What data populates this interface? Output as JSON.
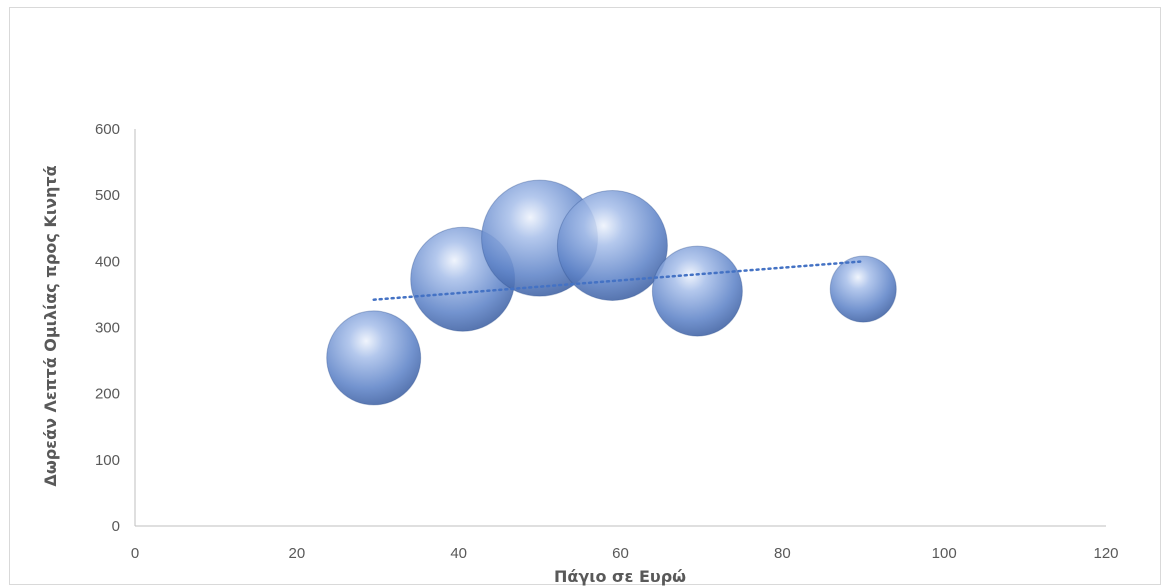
{
  "chart_data": {
    "type": "bubble",
    "title": "",
    "xlabel": "Πάγιο σε Ευρώ",
    "ylabel": "Δωρεάν Λεπτά Ομιλίας προς Κινητά",
    "xlim": [
      0,
      120
    ],
    "ylim": [
      0,
      600
    ],
    "x_ticks": [
      0,
      20,
      40,
      60,
      80,
      100,
      120
    ],
    "y_ticks": [
      0,
      100,
      200,
      300,
      400,
      500,
      600
    ],
    "grid": false,
    "legend": "none",
    "colors": {
      "bubble": "#5b7fc4",
      "bubble_light": "#c9d8f3",
      "bubble_dark": "#2f4f8f",
      "trendline": "#4472c4",
      "axis": "#bfbfbf",
      "text": "#595959"
    },
    "points": [
      {
        "x": 29.5,
        "y": 254,
        "r": 47
      },
      {
        "x": 40.5,
        "y": 373,
        "r": 52
      },
      {
        "x": 50,
        "y": 435,
        "r": 58
      },
      {
        "x": 59,
        "y": 424,
        "r": 55
      },
      {
        "x": 69.5,
        "y": 355,
        "r": 45
      },
      {
        "x": 90,
        "y": 358,
        "r": 33
      }
    ],
    "trendline": {
      "type": "linear",
      "style": "dotted",
      "x_start": 29.5,
      "y_start": 342,
      "x_end": 90,
      "y_end": 400
    }
  }
}
